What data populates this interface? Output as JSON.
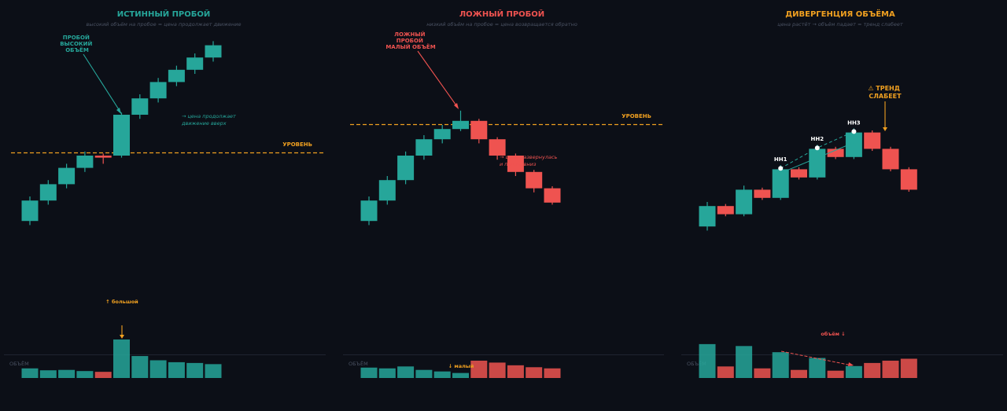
{
  "colors": {
    "background": "#0c0f17",
    "bull": "#26a69a",
    "bear": "#ef5350",
    "level": "#f0a020",
    "muted": "#4a5263",
    "text_light": "#ffffff"
  },
  "chart_data": [
    {
      "type": "candlestick",
      "title": "ИСТИННЫЙ ПРОБОЙ",
      "subtitle": "высокий объём на пробое = цена продолжает движение",
      "title_color": "#26a69a",
      "level_label": "УРОВЕНЬ",
      "level": 100,
      "ylim": [
        60,
        140
      ],
      "volume_label": "ОБЪЁМ",
      "volume_max": 100,
      "candles": [
        {
          "o": 84,
          "c": 89,
          "h": 90,
          "l": 83
        },
        {
          "o": 89,
          "c": 93,
          "h": 94,
          "l": 88
        },
        {
          "o": 93,
          "c": 97,
          "h": 98,
          "l": 92
        },
        {
          "o": 97,
          "c": 100,
          "h": 101,
          "l": 96
        },
        {
          "o": 100,
          "c": 99.5,
          "h": 100.5,
          "l": 98
        },
        {
          "o": 100,
          "c": 110,
          "h": 110.5,
          "l": 99.5
        },
        {
          "o": 110,
          "c": 114,
          "h": 115,
          "l": 109
        },
        {
          "o": 114,
          "c": 118,
          "h": 119,
          "l": 113
        },
        {
          "o": 118,
          "c": 121,
          "h": 122,
          "l": 117
        },
        {
          "o": 121,
          "c": 124,
          "h": 125,
          "l": 120
        },
        {
          "o": 124,
          "c": 127,
          "h": 128,
          "l": 123
        }
      ],
      "volume": [
        25,
        20,
        21,
        18,
        16,
        100,
        57,
        46,
        41,
        39,
        36
      ],
      "annotations": [
        {
          "lines": [
            "ПРОБОЙ",
            "ВЫСОКИЙ",
            "ОБЪЁМ"
          ],
          "color": "#26a69a"
        },
        {
          "lines": [
            "→ цена продолжает",
            "движение вверх"
          ],
          "color": "#26a69a"
        },
        {
          "lines": [
            "↑ большой"
          ],
          "color": "#f0a020"
        }
      ]
    },
    {
      "type": "candlestick",
      "title": "ЛОЖНЫЙ ПРОБОЙ",
      "subtitle": "низкий объём на пробое = цена возвращается обратно",
      "title_color": "#ef5350",
      "level_label": "УРОВЕНЬ",
      "level": 100,
      "ylim": [
        60,
        140
      ],
      "volume_label": "ОБЪЁМ",
      "volume_max": 100,
      "candles": [
        {
          "o": 84,
          "c": 89,
          "h": 90,
          "l": 83
        },
        {
          "o": 89,
          "c": 94,
          "h": 95,
          "l": 88
        },
        {
          "o": 94,
          "c": 100,
          "h": 101,
          "l": 93
        },
        {
          "o": 100,
          "c": 104,
          "h": 105,
          "l": 99
        },
        {
          "o": 104,
          "c": 106.5,
          "h": 107.5,
          "l": 103
        },
        {
          "o": 106.5,
          "c": 108.5,
          "h": 111,
          "l": 106
        },
        {
          "o": 108.5,
          "c": 104,
          "h": 109,
          "l": 103
        },
        {
          "o": 104,
          "c": 100,
          "h": 104.5,
          "l": 99
        },
        {
          "o": 100,
          "c": 96,
          "h": 100.5,
          "l": 95
        },
        {
          "o": 96,
          "c": 92,
          "h": 96.5,
          "l": 91
        },
        {
          "o": 92,
          "c": 88.5,
          "h": 92.5,
          "l": 88
        }
      ],
      "volume": [
        27,
        25,
        30,
        21,
        17,
        13,
        45,
        40,
        33,
        28,
        25
      ],
      "annotations": [
        {
          "lines": [
            "ЛОЖНЫЙ",
            "ПРОБОЙ",
            "МАЛЫЙ ОБЪЁМ"
          ],
          "color": "#ef5350"
        },
        {
          "lines": [
            "→ цена развернулась",
            "и пошла вниз"
          ],
          "color": "#ef5350"
        },
        {
          "lines": [
            "↓ малый"
          ],
          "color": "#f0a020"
        }
      ]
    },
    {
      "type": "candlestick",
      "title": "ДИВЕРГЕНЦИЯ ОБЪЁМА",
      "subtitle": "цена растёт → объём падает = тренд слабеет",
      "title_color": "#f0a020",
      "ylim": [
        60,
        140
      ],
      "volume_label": "ОБЪЁМ",
      "volume_max": 100,
      "candles": [
        {
          "o": 84,
          "c": 89,
          "h": 90,
          "l": 83
        },
        {
          "o": 89,
          "c": 87,
          "h": 89.5,
          "l": 86.5
        },
        {
          "o": 87,
          "c": 93,
          "h": 94,
          "l": 86.5
        },
        {
          "o": 93,
          "c": 91,
          "h": 93.5,
          "l": 90.5
        },
        {
          "o": 91,
          "c": 98,
          "h": 99,
          "l": 90.5
        },
        {
          "o": 98,
          "c": 96,
          "h": 98.5,
          "l": 95.5
        },
        {
          "o": 96,
          "c": 103,
          "h": 104,
          "l": 95.5
        },
        {
          "o": 103,
          "c": 101,
          "h": 103.5,
          "l": 100.5
        },
        {
          "o": 101,
          "c": 107,
          "h": 108,
          "l": 100.5
        },
        {
          "o": 107,
          "c": 103,
          "h": 107.5,
          "l": 102.5
        },
        {
          "o": 103,
          "c": 98,
          "h": 103.5,
          "l": 97.5
        },
        {
          "o": 98,
          "c": 93,
          "h": 98.5,
          "l": 92.5
        }
      ],
      "volume": [
        88,
        30,
        83,
        25,
        67,
        21,
        52,
        19,
        31,
        39,
        45,
        50
      ],
      "highs": [
        {
          "label": "HH1",
          "index": 4,
          "y": 99
        },
        {
          "label": "HH2",
          "index": 6,
          "y": 104
        },
        {
          "label": "HH3",
          "index": 8,
          "y": 108
        }
      ],
      "annotations": [
        {
          "lines": [
            "⚠ ТРЕНД",
            "СЛАБЕЕТ"
          ],
          "color": "#f0a020"
        },
        {
          "lines": [
            "объём ↓"
          ],
          "color": "#ef5350"
        }
      ]
    }
  ]
}
